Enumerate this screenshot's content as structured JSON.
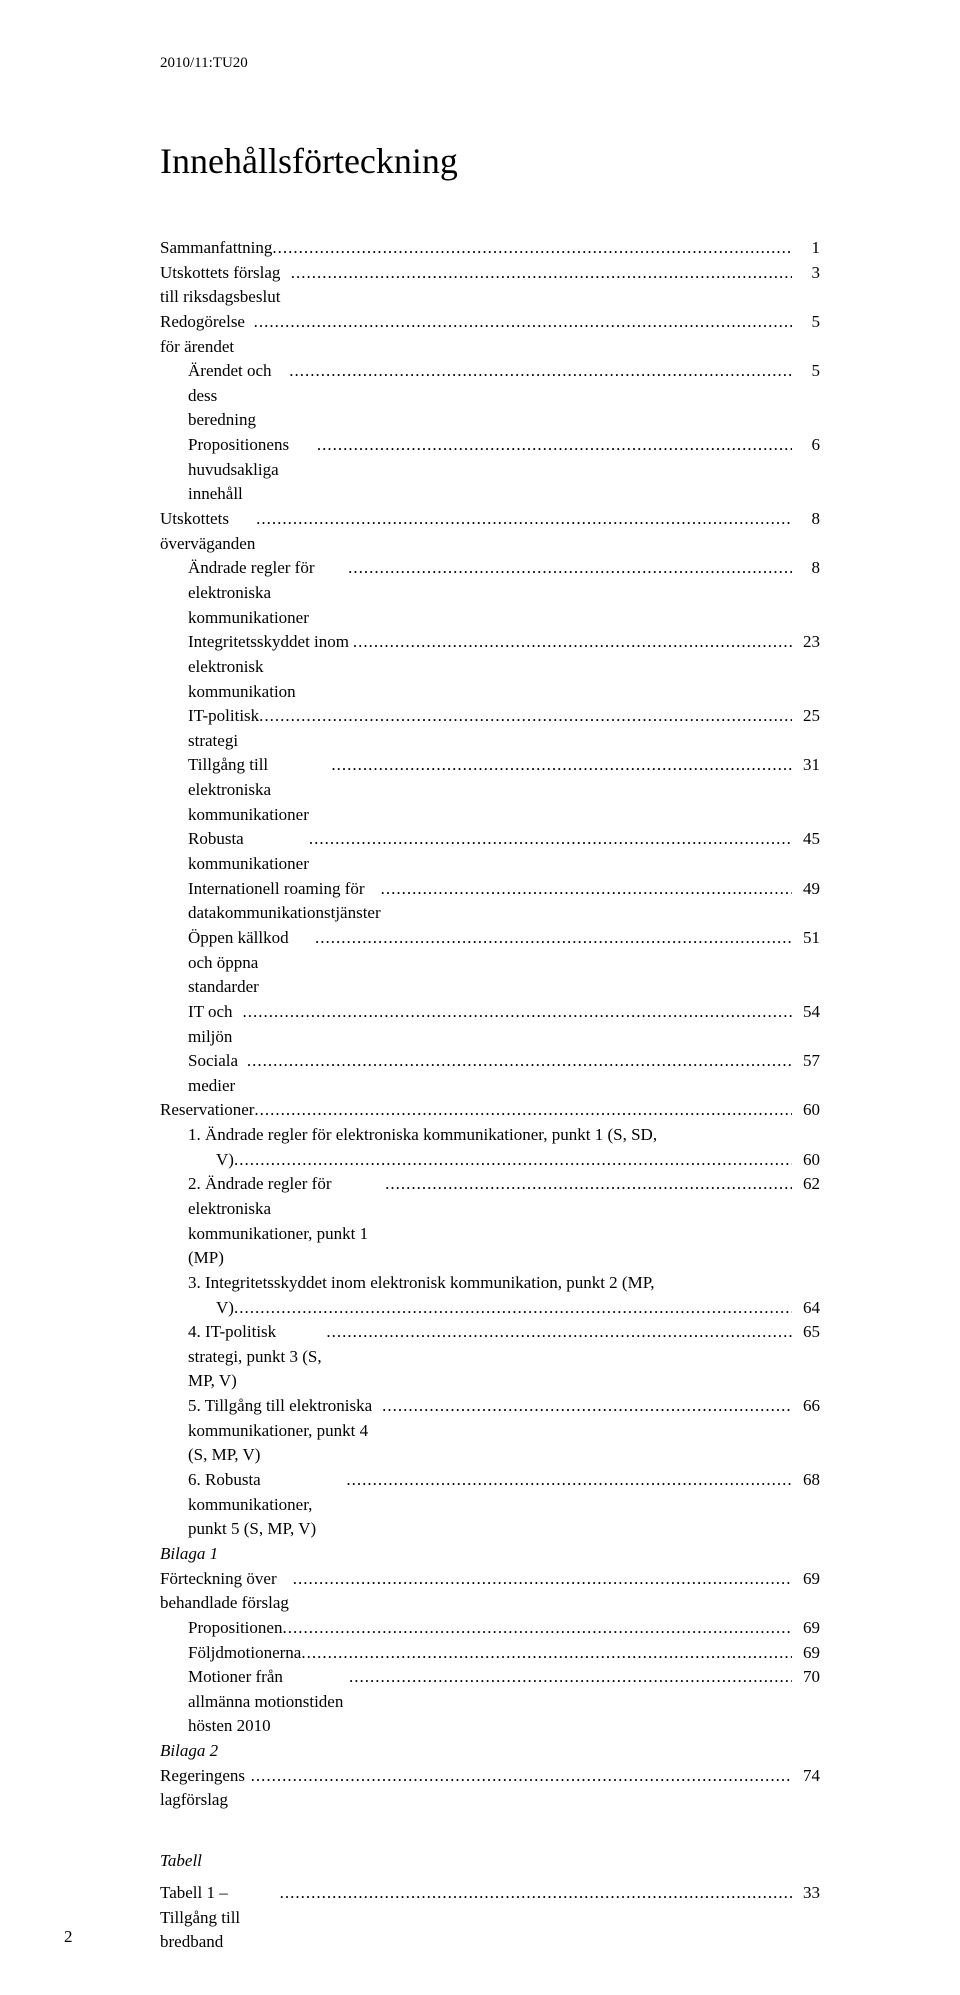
{
  "docHeader": "2010/11:TU20",
  "title": "Innehållsförteckning",
  "toc": [
    {
      "lvl": 0,
      "label": "Sammanfattning",
      "page": "1"
    },
    {
      "lvl": 0,
      "label": "Utskottets förslag till riksdagsbeslut",
      "page": "3"
    },
    {
      "lvl": 0,
      "label": "Redogörelse för ärendet",
      "page": "5"
    },
    {
      "lvl": 1,
      "label": "Ärendet och dess beredning",
      "page": "5"
    },
    {
      "lvl": 1,
      "label": "Propositionens huvudsakliga innehåll",
      "page": "6"
    },
    {
      "lvl": 0,
      "label": "Utskottets överväganden",
      "page": "8"
    },
    {
      "lvl": 1,
      "label": "Ändrade regler för elektroniska kommunikationer",
      "page": "8"
    },
    {
      "lvl": 1,
      "label": "Integritetsskyddet inom elektronisk kommunikation",
      "page": "23"
    },
    {
      "lvl": 1,
      "label": "IT-politisk strategi",
      "page": "25"
    },
    {
      "lvl": 1,
      "label": "Tillgång till elektroniska kommunikationer",
      "page": "31"
    },
    {
      "lvl": 1,
      "label": "Robusta kommunikationer",
      "page": "45"
    },
    {
      "lvl": 1,
      "label": "Internationell roaming för datakommunikationstjänster",
      "page": "49"
    },
    {
      "lvl": 1,
      "label": "Öppen källkod och öppna standarder",
      "page": "51"
    },
    {
      "lvl": 1,
      "label": "IT och miljön",
      "page": "54"
    },
    {
      "lvl": 1,
      "label": "Sociala medier",
      "page": "57"
    },
    {
      "lvl": 0,
      "label": "Reservationer",
      "page": "60"
    },
    {
      "lvl": 1,
      "wrap": true,
      "labelA": "1. Ändrade regler för elektroniska kommunikationer, punkt 1 (S, SD,",
      "labelB": "V)",
      "page": "60"
    },
    {
      "lvl": 1,
      "label": "2. Ändrade regler för elektroniska kommunikationer, punkt 1 (MP)",
      "page": "62"
    },
    {
      "lvl": 1,
      "wrap": true,
      "labelA": "3. Integritetsskyddet inom elektronisk kommunikation, punkt 2 (MP,",
      "labelB": "V)",
      "page": "64"
    },
    {
      "lvl": 1,
      "label": "4. IT-politisk strategi, punkt 3 (S, MP, V)",
      "page": "65"
    },
    {
      "lvl": 1,
      "label": "5. Tillgång till elektroniska kommunikationer, punkt 4 (S, MP, V)",
      "page": "66"
    },
    {
      "lvl": 1,
      "label": "6. Robusta kommunikationer, punkt 5 (S, MP, V)",
      "page": "68"
    },
    {
      "lvl": 0,
      "nolead": true,
      "ital": true,
      "label": "Bilaga 1"
    },
    {
      "lvl": 0,
      "label": "Förteckning över behandlade förslag",
      "page": "69"
    },
    {
      "lvl": 1,
      "label": "Propositionen",
      "page": "69"
    },
    {
      "lvl": 1,
      "label": "Följdmotionerna",
      "page": "69"
    },
    {
      "lvl": 1,
      "label": "Motioner från allmänna motionstiden hösten 2010",
      "page": "70"
    },
    {
      "lvl": 0,
      "nolead": true,
      "ital": true,
      "label": "Bilaga 2"
    },
    {
      "lvl": 0,
      "label": "Regeringens lagförslag",
      "page": "74"
    }
  ],
  "tabellHeading": "Tabell",
  "tabellEntry": {
    "label": "Tabell 1 – Tillgång till bredband",
    "page": "33"
  },
  "pageNumber": "2"
}
